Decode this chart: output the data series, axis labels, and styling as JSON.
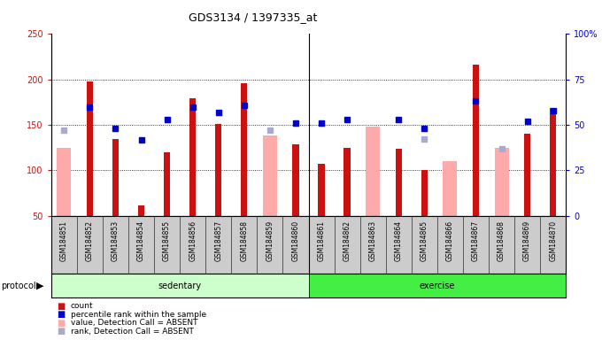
{
  "title": "GDS3134 / 1397335_at",
  "samples": [
    "GSM184851",
    "GSM184852",
    "GSM184853",
    "GSM184854",
    "GSM184855",
    "GSM184856",
    "GSM184857",
    "GSM184858",
    "GSM184859",
    "GSM184860",
    "GSM184861",
    "GSM184862",
    "GSM184863",
    "GSM184864",
    "GSM184865",
    "GSM184866",
    "GSM184867",
    "GSM184868",
    "GSM184869",
    "GSM184870"
  ],
  "count": [
    null,
    198,
    135,
    62,
    120,
    179,
    151,
    196,
    null,
    129,
    107,
    125,
    null,
    124,
    100,
    null,
    216,
    null,
    140,
    169
  ],
  "percentile_rank": [
    null,
    60,
    48,
    42,
    53,
    60,
    57,
    61,
    null,
    51,
    51,
    53,
    null,
    53,
    48,
    null,
    63,
    null,
    52,
    58
  ],
  "absent_value": [
    125,
    null,
    null,
    null,
    null,
    null,
    null,
    null,
    138,
    null,
    null,
    null,
    148,
    null,
    null,
    110,
    null,
    125,
    null,
    null
  ],
  "absent_rank": [
    144,
    null,
    null,
    null,
    null,
    null,
    null,
    null,
    144,
    null,
    null,
    null,
    null,
    null,
    135,
    null,
    null,
    124,
    null,
    null
  ],
  "sedentary_count": 10,
  "ylim_left": [
    50,
    250
  ],
  "ylim_right": [
    0,
    100
  ],
  "yticks_left": [
    50,
    100,
    150,
    200,
    250
  ],
  "yticks_right": [
    0,
    25,
    50,
    75,
    100
  ],
  "ytick_labels_right": [
    "0",
    "25",
    "50",
    "75",
    "100%"
  ],
  "color_count": "#cc1111",
  "color_rank": "#0000cc",
  "color_absent_value": "#ffaaaa",
  "color_absent_rank": "#aaaacc",
  "color_sedentary": "#ccffcc",
  "color_exercise": "#44ee44",
  "color_xband": "#cccccc",
  "protocol_label": "protocol",
  "sedentary_label": "sedentary",
  "exercise_label": "exercise",
  "legend_items": [
    "count",
    "percentile rank within the sample",
    "value, Detection Call = ABSENT",
    "rank, Detection Call = ABSENT"
  ]
}
